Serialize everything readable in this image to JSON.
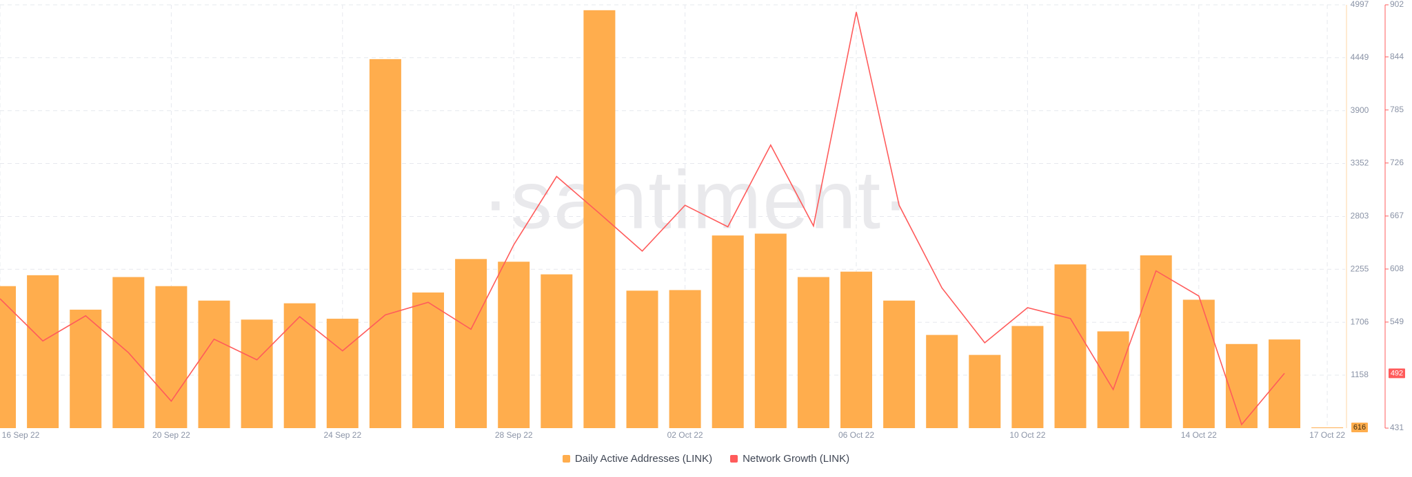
{
  "chart_data": {
    "type": "bar-line",
    "watermark": "·santiment·",
    "categories": [
      "16 Sep 22",
      null,
      null,
      null,
      "20 Sep 22",
      null,
      null,
      null,
      "24 Sep 22",
      null,
      null,
      null,
      "28 Sep 22",
      null,
      null,
      null,
      "02 Oct 22",
      null,
      null,
      null,
      "06 Oct 22",
      null,
      null,
      null,
      "10 Oct 22",
      null,
      null,
      null,
      "14 Oct 22",
      null,
      null,
      "17 Oct 22"
    ],
    "series": [
      {
        "name": "Daily Active Addresses (LINK)",
        "color": "#ffad4d",
        "type": "bar",
        "values": [
          2081,
          2194,
          1837,
          2175,
          2081,
          1931,
          1734,
          1903,
          1743,
          4434,
          2015,
          2362,
          2334,
          2203,
          4941,
          2034,
          2040,
          2606,
          2625,
          2175,
          2231,
          1931,
          1575,
          1368,
          1668,
          2306,
          1612,
          2400,
          1940,
          1481,
          1528,
          616
        ]
      },
      {
        "name": "Network Growth (LINK)",
        "color": "#ff5b5b",
        "type": "line",
        "axis": "y2",
        "values": [
          575,
          528,
          556,
          515,
          461,
          530,
          507,
          555,
          517,
          557,
          571,
          541,
          635,
          711,
          670,
          628,
          679,
          655,
          746,
          656,
          894,
          679,
          587,
          526,
          565,
          553,
          474,
          606,
          578,
          435,
          492,
          null
        ]
      }
    ],
    "ylim": [
      609,
      4997
    ],
    "yticks": [
      1158,
      1706,
      2255,
      2803,
      3352,
      3900,
      4449,
      4997
    ],
    "y2lim": [
      431,
      902
    ],
    "y2ticks": [
      431,
      549,
      608,
      667,
      726,
      785,
      844,
      902
    ],
    "grid": true
  }
}
